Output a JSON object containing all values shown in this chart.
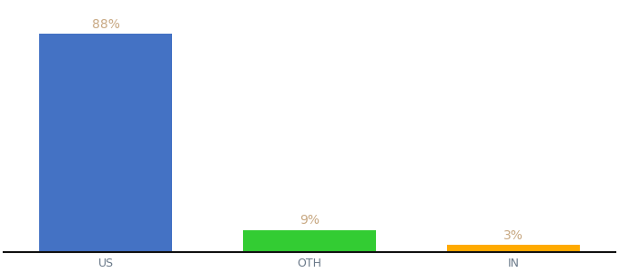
{
  "categories": [
    "US",
    "OTH",
    "IN"
  ],
  "values": [
    88,
    9,
    3
  ],
  "bar_colors": [
    "#4472c4",
    "#33cc33",
    "#ffaa00"
  ],
  "label_color": "#c8a882",
  "value_labels": [
    "88%",
    "9%",
    "3%"
  ],
  "ylim": [
    0,
    100
  ],
  "background_color": "#ffffff",
  "bar_width": 0.65,
  "label_fontsize": 10,
  "tick_fontsize": 9,
  "tick_color": "#6b7a8a",
  "axis_line_color": "#111111",
  "x_positions": [
    0,
    1,
    2
  ],
  "xlim": [
    -0.5,
    2.5
  ]
}
